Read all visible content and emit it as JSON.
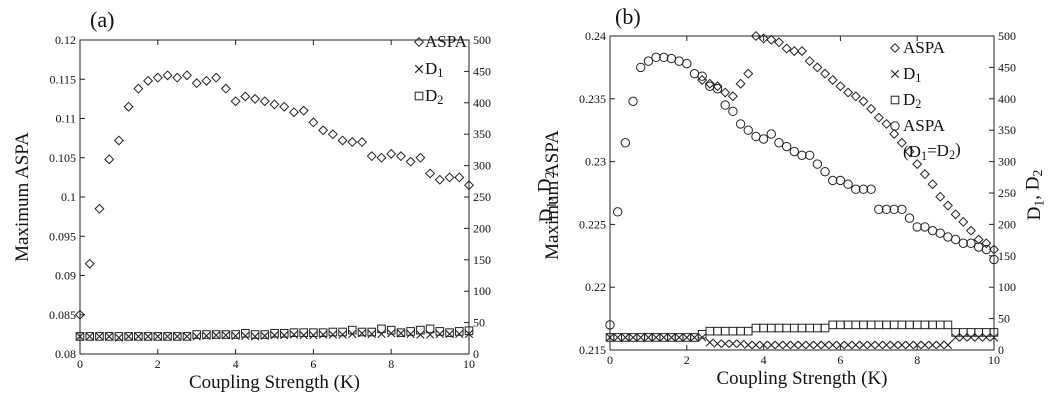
{
  "chart_data": [
    {
      "type": "scatter",
      "panel_label": "(a)",
      "xlabel": "Coupling Strength (K)",
      "ylabel": "Maximum ASPA",
      "y2label_parts": [
        "D",
        "1",
        ", D",
        "2"
      ],
      "xlim": [
        0,
        10
      ],
      "ylim": [
        0.08,
        0.12
      ],
      "y2lim": [
        0,
        500
      ],
      "x_ticks": [
        0,
        2,
        4,
        6,
        8,
        10
      ],
      "y_ticks": [
        0.08,
        0.085,
        0.09,
        0.095,
        0.1,
        0.105,
        0.11,
        0.115,
        0.12
      ],
      "y_tick_labels": [
        "0.08",
        "0.085",
        "0.09",
        "0.095",
        "0.1",
        "0.105",
        "0.11",
        "0.115",
        "0.12"
      ],
      "y2_ticks": [
        0,
        50,
        100,
        150,
        200,
        250,
        300,
        350,
        400,
        450,
        500
      ],
      "legend": [
        {
          "label_parts": [
            "ASPA"
          ],
          "marker": "diamond"
        },
        {
          "label_parts": [
            "D",
            "1"
          ],
          "marker": "cross"
        },
        {
          "label_parts": [
            "D",
            "2"
          ],
          "marker": "square"
        }
      ],
      "series": [
        {
          "name": "ASPA",
          "marker": "diamond",
          "axis": "left",
          "x": [
            0,
            0.25,
            0.5,
            0.75,
            1,
            1.25,
            1.5,
            1.75,
            2,
            2.25,
            2.5,
            2.75,
            3,
            3.25,
            3.5,
            3.75,
            4,
            4.25,
            4.5,
            4.75,
            5,
            5.25,
            5.5,
            5.75,
            6,
            6.25,
            6.5,
            6.75,
            7,
            7.25,
            7.5,
            7.75,
            8,
            8.25,
            8.5,
            8.75,
            9,
            9.25,
            9.5,
            9.75,
            10
          ],
          "y": [
            0.085,
            0.0915,
            0.0985,
            0.1048,
            0.1072,
            0.1115,
            0.1138,
            0.1148,
            0.1152,
            0.1155,
            0.1152,
            0.1155,
            0.1145,
            0.1148,
            0.1152,
            0.1138,
            0.1122,
            0.1128,
            0.1125,
            0.1122,
            0.1118,
            0.1115,
            0.1108,
            0.111,
            0.1095,
            0.1085,
            0.108,
            0.1072,
            0.107,
            0.107,
            0.1052,
            0.105,
            0.1055,
            0.1052,
            0.1045,
            0.105,
            0.103,
            0.1022,
            0.1025,
            0.1025,
            0.1015
          ]
        },
        {
          "name": "D1",
          "marker": "cross",
          "axis": "right",
          "x": [
            0,
            0.25,
            0.5,
            0.75,
            1,
            1.25,
            1.5,
            1.75,
            2,
            2.25,
            2.5,
            2.75,
            3,
            3.25,
            3.5,
            3.75,
            4,
            4.25,
            4.5,
            4.75,
            5,
            5.25,
            5.5,
            5.75,
            6,
            6.25,
            6.5,
            6.75,
            7,
            7.25,
            7.5,
            7.75,
            8,
            8.25,
            8.5,
            8.75,
            9,
            9.25,
            9.5,
            9.75,
            10
          ],
          "y": [
            28,
            28,
            28,
            28,
            26,
            28,
            28,
            28,
            28,
            28,
            28,
            28,
            28,
            29,
            30,
            30,
            29,
            29,
            28,
            29,
            30,
            30,
            31,
            30,
            30,
            31,
            31,
            31,
            32,
            33,
            32,
            32,
            33,
            33,
            32,
            31,
            31,
            32,
            32,
            32,
            32
          ]
        },
        {
          "name": "D2",
          "marker": "square",
          "axis": "right",
          "x": [
            0,
            0.25,
            0.5,
            0.75,
            1,
            1.25,
            1.5,
            1.75,
            2,
            2.25,
            2.5,
            2.75,
            3,
            3.25,
            3.5,
            3.75,
            4,
            4.25,
            4.5,
            4.75,
            5,
            5.25,
            5.5,
            5.75,
            6,
            6.25,
            6.5,
            6.75,
            7,
            7.25,
            7.5,
            7.75,
            8,
            8.25,
            8.5,
            8.75,
            9,
            9.25,
            9.5,
            9.75,
            10
          ],
          "y": [
            28,
            28,
            28,
            28,
            28,
            28,
            28,
            28,
            28,
            28,
            28,
            28,
            31,
            31,
            31,
            31,
            31,
            33,
            31,
            31,
            33,
            33,
            34,
            34,
            34,
            34,
            35,
            35,
            38,
            35,
            35,
            40,
            38,
            34,
            36,
            38,
            40,
            36,
            34,
            36,
            37
          ]
        }
      ]
    },
    {
      "type": "scatter",
      "panel_label": "(b)",
      "xlabel": "Coupling Strength (K)",
      "ylabel": "Maximum ASPA",
      "y2label_parts": [
        "D",
        "1",
        ", D",
        "2"
      ],
      "xlim": [
        0,
        10
      ],
      "ylim": [
        0.215,
        0.24
      ],
      "y2lim": [
        0,
        500
      ],
      "x_ticks": [
        0,
        2,
        4,
        6,
        8,
        10
      ],
      "y_ticks": [
        0.215,
        0.22,
        0.225,
        0.23,
        0.235,
        0.24
      ],
      "y_tick_labels": [
        "0.215",
        "0.22",
        "0.225",
        "0.23",
        "0.235",
        "0.24"
      ],
      "y2_ticks": [
        0,
        50,
        100,
        150,
        200,
        250,
        300,
        350,
        400,
        450,
        500
      ],
      "legend": [
        {
          "label_parts": [
            "ASPA"
          ],
          "marker": "diamond"
        },
        {
          "label_parts": [
            "D",
            "1"
          ],
          "marker": "cross"
        },
        {
          "label_parts": [
            "D",
            "2"
          ],
          "marker": "square"
        },
        {
          "label_parts": [
            "ASPA"
          ],
          "marker": "circle"
        },
        {
          "label_parts": [
            "(D",
            "1",
            "=D",
            "2",
            ")"
          ],
          "marker": "none"
        }
      ],
      "series": [
        {
          "name": "ASPA",
          "marker": "diamond",
          "axis": "left",
          "x": [
            2.4,
            2.6,
            2.8,
            3.0,
            3.2,
            3.4,
            3.6,
            3.8,
            4.0,
            4.2,
            4.4,
            4.6,
            4.8,
            5.0,
            5.2,
            5.4,
            5.6,
            5.8,
            6.0,
            6.2,
            6.4,
            6.6,
            6.8,
            7.0,
            7.2,
            7.4,
            7.6,
            7.8,
            8.0,
            8.2,
            8.4,
            8.6,
            8.8,
            9.0,
            9.2,
            9.4,
            9.6,
            9.8,
            10.0
          ],
          "y": [
            0.2365,
            0.2362,
            0.236,
            0.2355,
            0.2352,
            0.2362,
            0.237,
            0.24,
            0.2398,
            0.2397,
            0.2395,
            0.239,
            0.2388,
            0.2388,
            0.238,
            0.2375,
            0.237,
            0.2365,
            0.236,
            0.2355,
            0.2352,
            0.2348,
            0.2342,
            0.2335,
            0.233,
            0.2322,
            0.2315,
            0.2308,
            0.2298,
            0.229,
            0.2282,
            0.2272,
            0.2265,
            0.2258,
            0.2252,
            0.2245,
            0.2238,
            0.2235,
            0.223
          ]
        },
        {
          "name": "ASPA (D1=D2)",
          "marker": "circle",
          "axis": "left",
          "x": [
            0,
            0.2,
            0.4,
            0.6,
            0.8,
            1.0,
            1.2,
            1.4,
            1.6,
            1.8,
            2.0,
            2.2,
            2.4,
            2.6,
            2.8,
            3.0,
            3.2,
            3.4,
            3.6,
            3.8,
            4.0,
            4.2,
            4.4,
            4.6,
            4.8,
            5.0,
            5.2,
            5.4,
            5.6,
            5.8,
            6.0,
            6.2,
            6.4,
            6.6,
            6.8,
            7.0,
            7.2,
            7.4,
            7.6,
            7.8,
            8.0,
            8.2,
            8.4,
            8.6,
            8.8,
            9.0,
            9.2,
            9.4,
            9.6,
            9.8,
            10.0
          ],
          "y": [
            0.217,
            0.226,
            0.2315,
            0.2348,
            0.2375,
            0.238,
            0.2383,
            0.2383,
            0.2382,
            0.238,
            0.2378,
            0.237,
            0.2368,
            0.236,
            0.2358,
            0.2345,
            0.234,
            0.233,
            0.2325,
            0.232,
            0.2318,
            0.2322,
            0.2315,
            0.2312,
            0.2308,
            0.2305,
            0.2305,
            0.2298,
            0.2292,
            0.2285,
            0.2285,
            0.2282,
            0.2278,
            0.2278,
            0.2278,
            0.2262,
            0.2262,
            0.2262,
            0.2262,
            0.2255,
            0.2248,
            0.2248,
            0.2245,
            0.2243,
            0.224,
            0.2238,
            0.2235,
            0.2235,
            0.2232,
            0.223,
            0.2222
          ]
        },
        {
          "name": "D1",
          "marker": "cross",
          "axis": "right",
          "x": [
            0,
            0.2,
            0.4,
            0.6,
            0.8,
            1.0,
            1.2,
            1.4,
            1.6,
            1.8,
            2.0,
            2.2,
            2.4,
            2.6,
            2.8,
            3.0,
            3.2,
            3.4,
            3.6,
            3.8,
            4.0,
            4.2,
            4.4,
            4.6,
            4.8,
            5.0,
            5.2,
            5.4,
            5.6,
            5.8,
            6.0,
            6.2,
            6.4,
            6.6,
            6.8,
            7.0,
            7.2,
            7.4,
            7.6,
            7.8,
            8.0,
            8.2,
            8.4,
            8.6,
            8.8,
            9.0,
            9.2,
            9.4,
            9.6,
            9.8,
            10.0
          ],
          "y": [
            20,
            20,
            20,
            20,
            20,
            20,
            20,
            20,
            20,
            20,
            20,
            20,
            20,
            12,
            10,
            10,
            10,
            10,
            8,
            8,
            8,
            8,
            8,
            8,
            8,
            8,
            8,
            8,
            8,
            8,
            8,
            8,
            8,
            8,
            8,
            8,
            8,
            8,
            8,
            8,
            8,
            8,
            8,
            8,
            8,
            20,
            20,
            20,
            20,
            20,
            20
          ]
        },
        {
          "name": "D2",
          "marker": "square",
          "axis": "right",
          "x": [
            0,
            0.2,
            0.4,
            0.6,
            0.8,
            1.0,
            1.2,
            1.4,
            1.6,
            1.8,
            2.0,
            2.2,
            2.4,
            2.6,
            2.8,
            3.0,
            3.2,
            3.4,
            3.6,
            3.8,
            4.0,
            4.2,
            4.4,
            4.6,
            4.8,
            5.0,
            5.2,
            5.4,
            5.6,
            5.8,
            6.0,
            6.2,
            6.4,
            6.6,
            6.8,
            7.0,
            7.2,
            7.4,
            7.6,
            7.8,
            8.0,
            8.2,
            8.4,
            8.6,
            8.8,
            9.0,
            9.2,
            9.4,
            9.6,
            9.8,
            10.0
          ],
          "y": [
            20,
            20,
            20,
            20,
            20,
            20,
            20,
            20,
            20,
            20,
            20,
            20,
            25,
            30,
            30,
            30,
            30,
            30,
            30,
            35,
            35,
            35,
            35,
            35,
            35,
            35,
            35,
            35,
            35,
            40,
            40,
            40,
            40,
            40,
            40,
            40,
            40,
            40,
            40,
            40,
            40,
            40,
            40,
            40,
            40,
            28,
            28,
            28,
            28,
            28,
            28
          ]
        }
      ]
    }
  ]
}
